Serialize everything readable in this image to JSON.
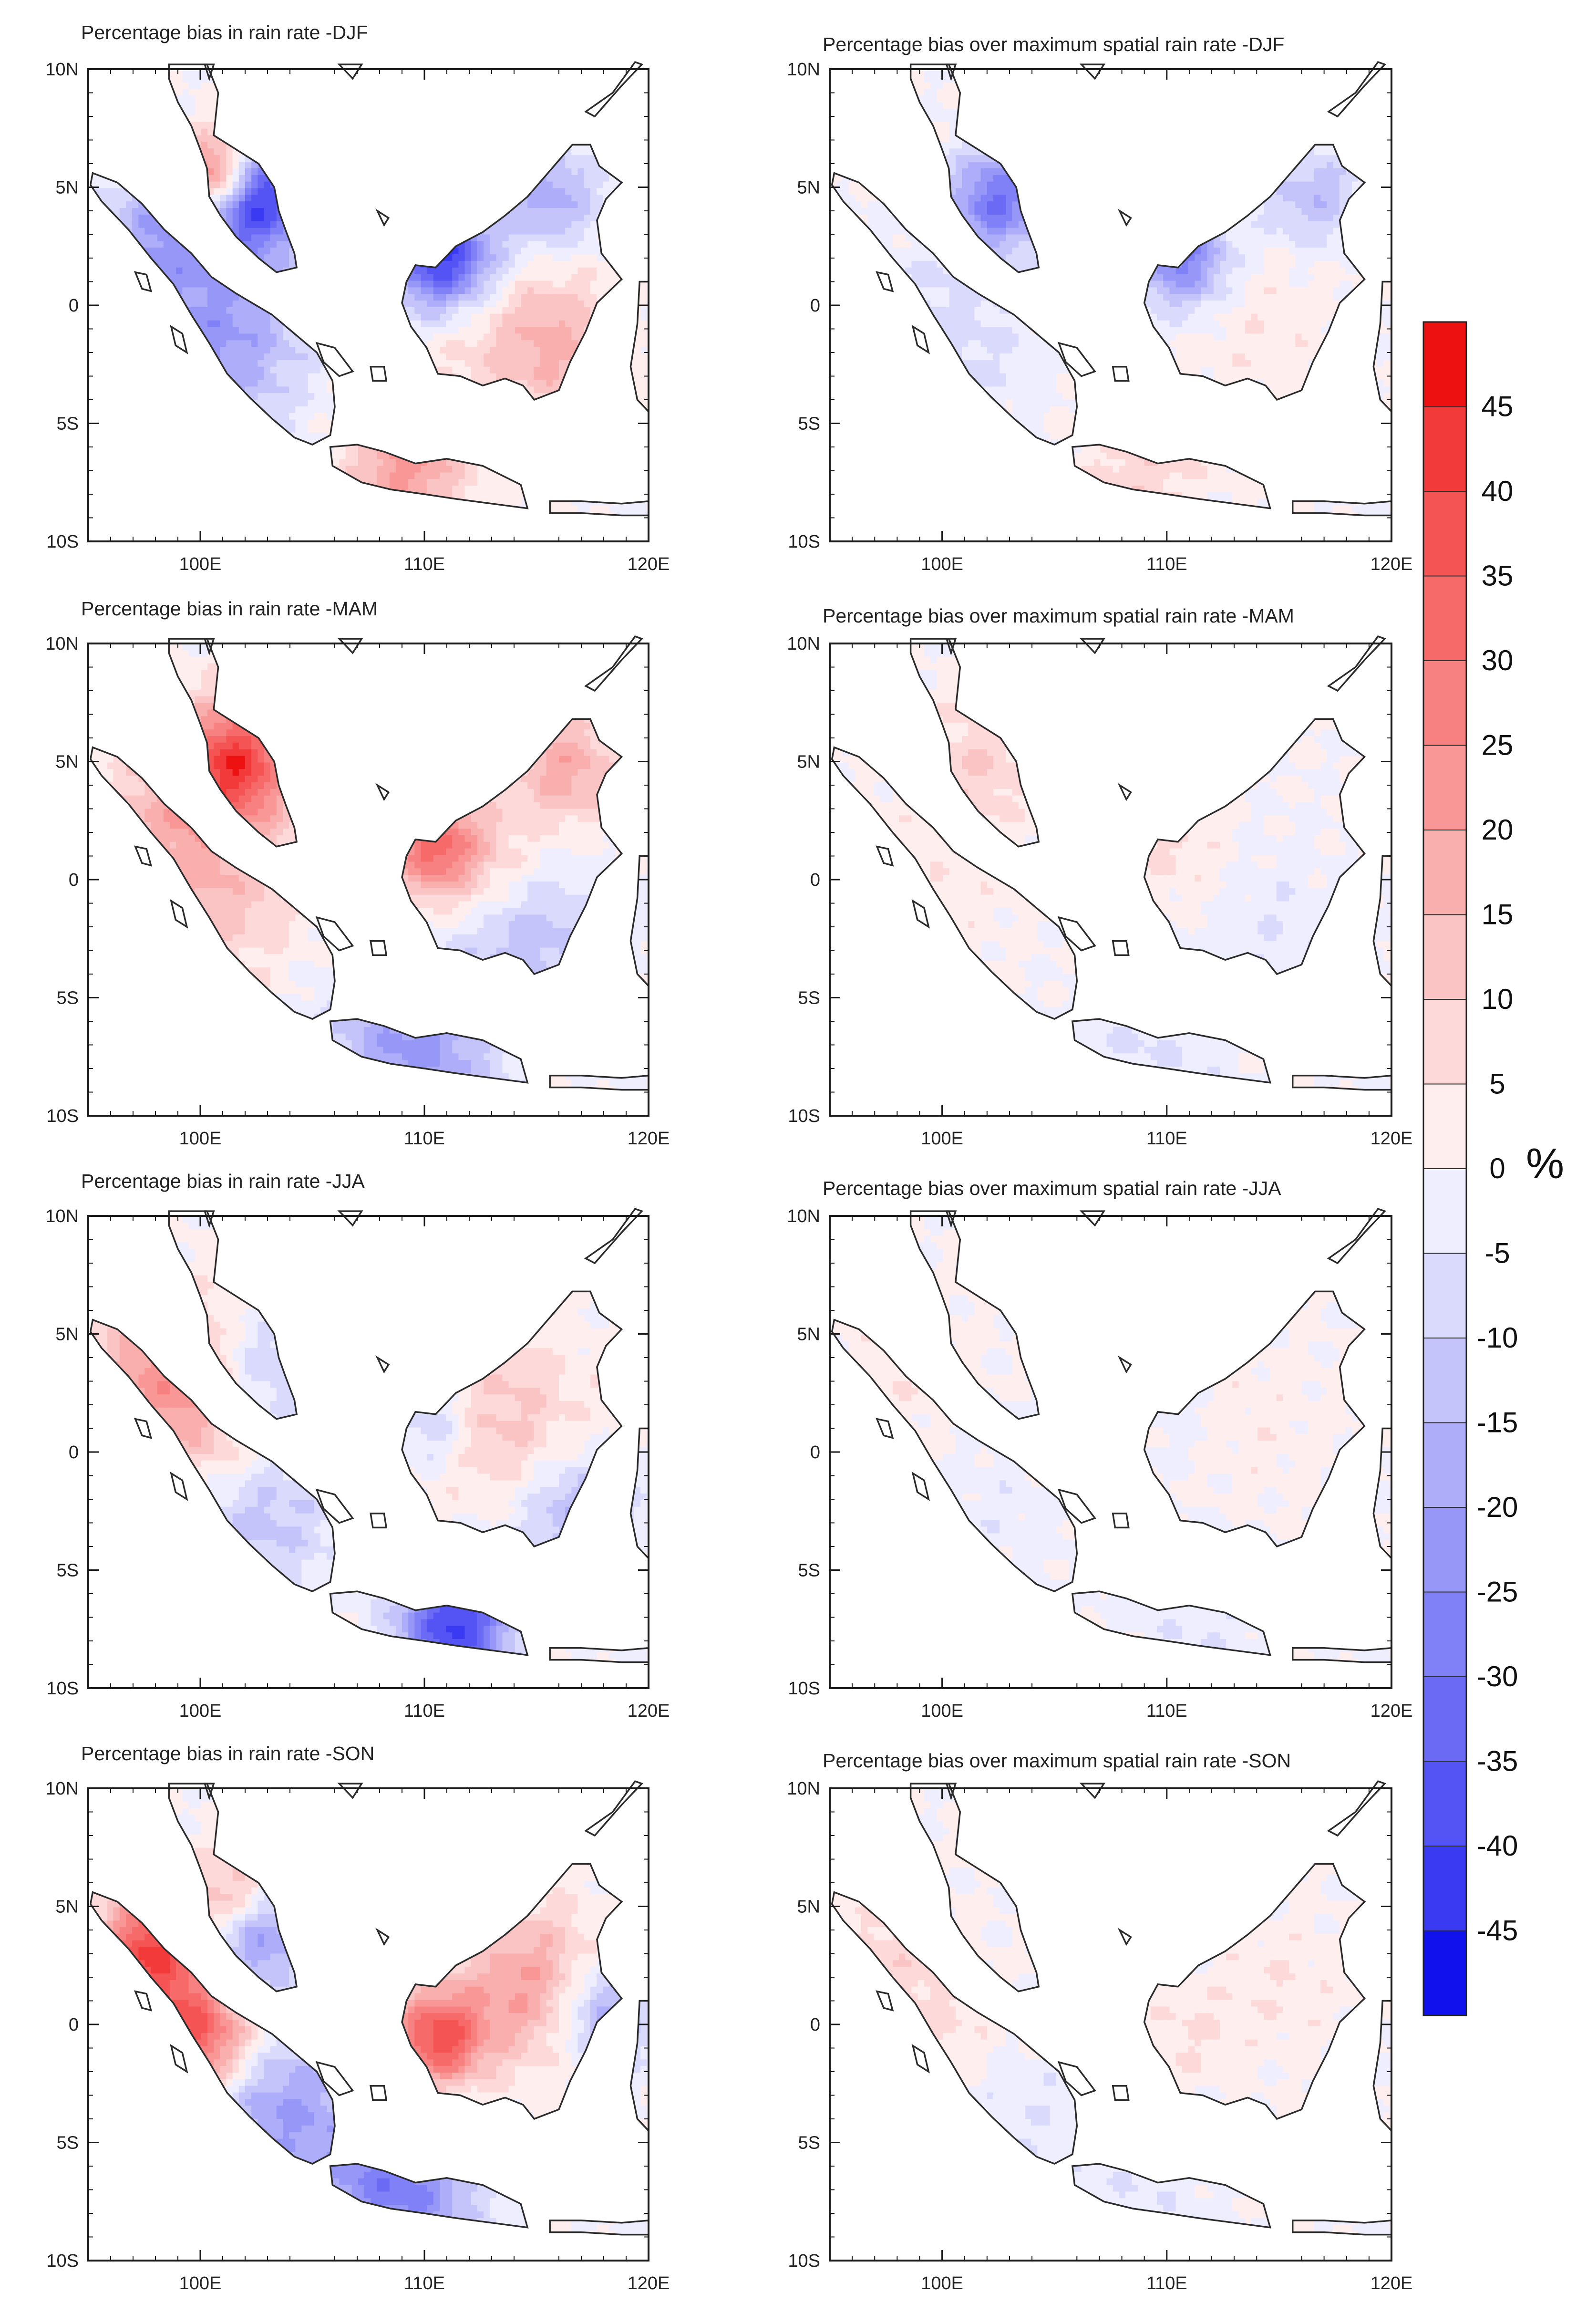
{
  "figure": {
    "left_column_title_prefix": "Percentage bias in rain rate",
    "right_column_title_prefix": "Percentage bias over maximum spatial rain rate",
    "panels": [
      {
        "title": "Percentage bias in rain rate -DJF",
        "season": "DJF"
      },
      {
        "title": "Percentage bias over maximum spatial rain rate -DJF",
        "season": "DJF"
      },
      {
        "title": "Percentage bias in rain rate -MAM",
        "season": "MAM"
      },
      {
        "title": "Percentage bias over maximum spatial rain rate -MAM",
        "season": "MAM"
      },
      {
        "title": "Percentage bias in rain rate -JJA",
        "season": "JJA"
      },
      {
        "title": "Percentage bias over maximum spatial rain rate -JJA",
        "season": "JJA"
      },
      {
        "title": "Percentage bias in rain rate -SON",
        "season": "SON"
      },
      {
        "title": "Percentage bias over maximum spatial rain rate -SON",
        "season": "SON"
      }
    ]
  },
  "axes": {
    "lat_labels": [
      "10N",
      "5N",
      "0",
      "5S",
      "10S"
    ],
    "lat_values": [
      10,
      5,
      0,
      -5,
      -10
    ],
    "lon_labels": [
      "100E",
      "110E",
      "120E"
    ],
    "lon_values": [
      100,
      110,
      120
    ],
    "lon_range": [
      95,
      120
    ],
    "lat_range": [
      -10,
      10
    ]
  },
  "colorbar": {
    "unit_label": "%",
    "labels": [
      "45",
      "40",
      "35",
      "30",
      "25",
      "20",
      "15",
      "10",
      "5",
      "0",
      "-5",
      "-10",
      "-15",
      "-20",
      "-25",
      "-30",
      "-35",
      "-40",
      "-45"
    ],
    "colors": [
      "#ee1111",
      "#f23a3a",
      "#f55454",
      "#f66a6a",
      "#f78181",
      "#f99797",
      "#faafaf",
      "#fbc4c4",
      "#fdd9d9",
      "#feeeee",
      "#eeeefe",
      "#dadafd",
      "#c4c4fb",
      "#adadfa",
      "#9797f8",
      "#8181f7",
      "#6a6af5",
      "#5454f4",
      "#3a3af2",
      "#1111ee"
    ]
  },
  "colors": {
    "coast": "#2b2b2b",
    "frame": "#1a1a1a"
  }
}
